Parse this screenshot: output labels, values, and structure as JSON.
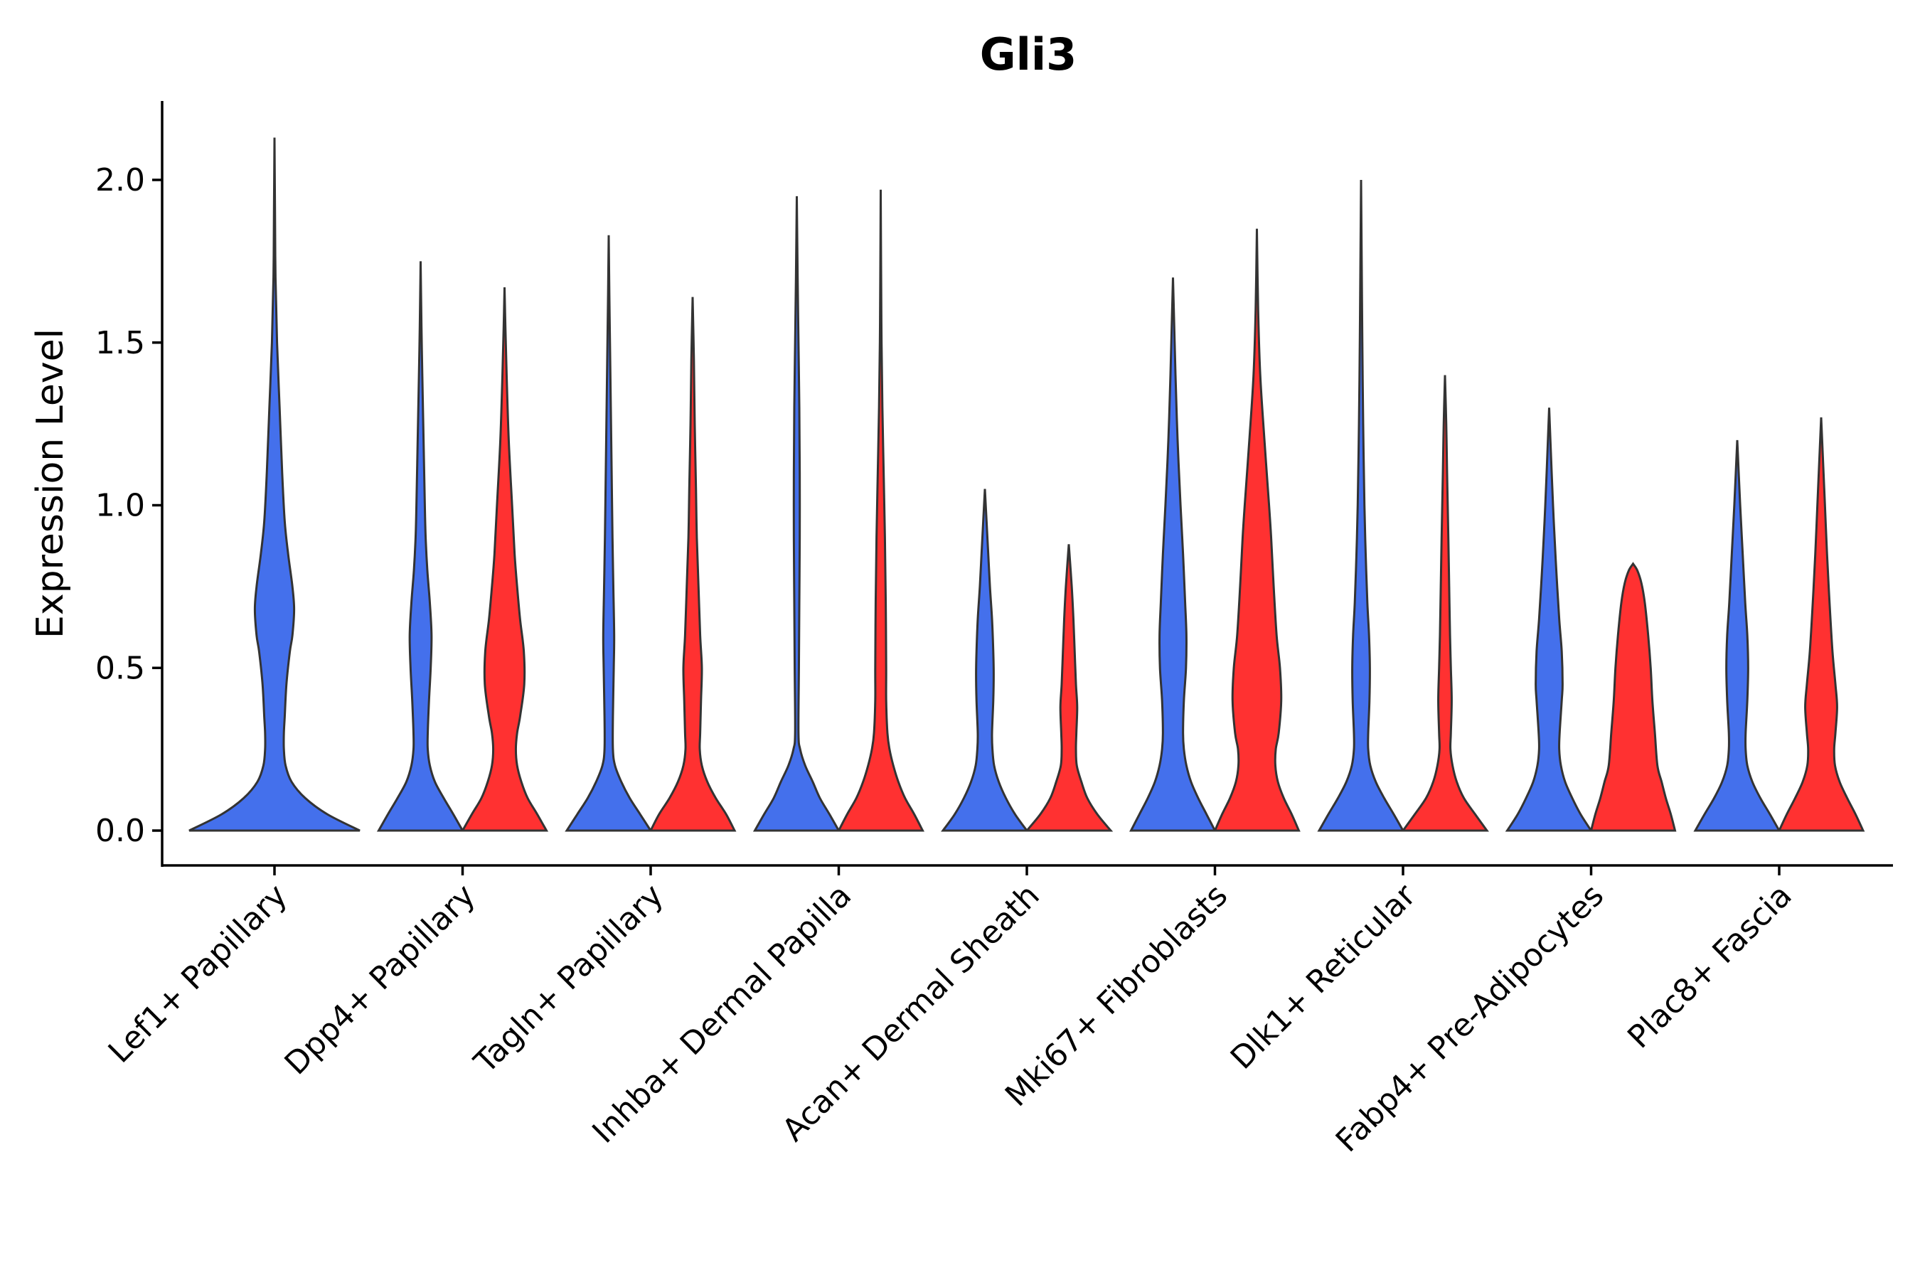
{
  "chart_data": {
    "type": "violin",
    "title": "Gli3",
    "xlabel": "",
    "ylabel": "Expression Level",
    "ylim": [
      -0.105,
      2.24
    ],
    "yticks": [
      0.0,
      0.5,
      1.0,
      1.5,
      2.0
    ],
    "ytick_labels": [
      "0.0",
      "0.5",
      "1.0",
      "1.5",
      "2.0"
    ],
    "colors": {
      "group_a": "#4470EC",
      "group_b": "#FF3131",
      "outline": "#333333"
    },
    "categories": [
      "Lef1+ Papillary",
      "Dpp4+ Papillary",
      "Tagln+ Papillary",
      "Inhba+ Dermal Papilla",
      "Acan+ Dermal Sheath",
      "Mki67+ Fibroblasts",
      "Dlk1+ Reticular",
      "Fabp4+ Pre-Adipocytes",
      "Plac8+ Fascia"
    ],
    "violins": [
      {
        "category": "Lef1+ Papillary",
        "group": "blue",
        "max": 2.13,
        "centered": true,
        "profile": [
          [
            0.0,
            1.0
          ],
          [
            0.05,
            0.62
          ],
          [
            0.1,
            0.36
          ],
          [
            0.15,
            0.2
          ],
          [
            0.2,
            0.13
          ],
          [
            0.25,
            0.11
          ],
          [
            0.3,
            0.11
          ],
          [
            0.35,
            0.12
          ],
          [
            0.45,
            0.14
          ],
          [
            0.55,
            0.18
          ],
          [
            0.6,
            0.21
          ],
          [
            0.68,
            0.23
          ],
          [
            0.75,
            0.21
          ],
          [
            0.85,
            0.16
          ],
          [
            0.95,
            0.12
          ],
          [
            1.1,
            0.09
          ],
          [
            1.3,
            0.06
          ],
          [
            1.5,
            0.03
          ],
          [
            1.7,
            0.012
          ],
          [
            1.9,
            0.006
          ],
          [
            2.13,
            0.0
          ]
        ]
      },
      {
        "category": "Dpp4+ Papillary",
        "group": "blue",
        "max": 1.75,
        "profile": [
          [
            0.0,
            1.0
          ],
          [
            0.05,
            0.78
          ],
          [
            0.1,
            0.55
          ],
          [
            0.15,
            0.34
          ],
          [
            0.2,
            0.22
          ],
          [
            0.25,
            0.17
          ],
          [
            0.3,
            0.17
          ],
          [
            0.4,
            0.2
          ],
          [
            0.5,
            0.24
          ],
          [
            0.6,
            0.26
          ],
          [
            0.7,
            0.22
          ],
          [
            0.8,
            0.16
          ],
          [
            0.9,
            0.12
          ],
          [
            1.0,
            0.1
          ],
          [
            1.2,
            0.07
          ],
          [
            1.4,
            0.04
          ],
          [
            1.55,
            0.02
          ],
          [
            1.75,
            0.0
          ]
        ]
      },
      {
        "category": "Dpp4+ Papillary",
        "group": "red",
        "max": 1.67,
        "profile": [
          [
            0.0,
            1.0
          ],
          [
            0.05,
            0.78
          ],
          [
            0.1,
            0.55
          ],
          [
            0.15,
            0.4
          ],
          [
            0.2,
            0.3
          ],
          [
            0.25,
            0.27
          ],
          [
            0.3,
            0.3
          ],
          [
            0.35,
            0.37
          ],
          [
            0.45,
            0.47
          ],
          [
            0.55,
            0.46
          ],
          [
            0.65,
            0.37
          ],
          [
            0.75,
            0.3
          ],
          [
            0.85,
            0.24
          ],
          [
            1.0,
            0.18
          ],
          [
            1.2,
            0.1
          ],
          [
            1.4,
            0.05
          ],
          [
            1.55,
            0.02
          ],
          [
            1.67,
            0.0
          ]
        ]
      },
      {
        "category": "Tagln+ Papillary",
        "group": "blue",
        "max": 1.83,
        "profile": [
          [
            0.0,
            1.0
          ],
          [
            0.05,
            0.75
          ],
          [
            0.1,
            0.5
          ],
          [
            0.15,
            0.3
          ],
          [
            0.2,
            0.15
          ],
          [
            0.25,
            0.1
          ],
          [
            0.35,
            0.1
          ],
          [
            0.5,
            0.12
          ],
          [
            0.6,
            0.13
          ],
          [
            0.75,
            0.11
          ],
          [
            0.9,
            0.09
          ],
          [
            1.1,
            0.07
          ],
          [
            1.3,
            0.05
          ],
          [
            1.5,
            0.03
          ],
          [
            1.65,
            0.015
          ],
          [
            1.83,
            0.0
          ]
        ]
      },
      {
        "category": "Tagln+ Papillary",
        "group": "red",
        "max": 1.64,
        "profile": [
          [
            0.0,
            1.0
          ],
          [
            0.05,
            0.8
          ],
          [
            0.1,
            0.55
          ],
          [
            0.15,
            0.35
          ],
          [
            0.2,
            0.22
          ],
          [
            0.25,
            0.17
          ],
          [
            0.3,
            0.18
          ],
          [
            0.4,
            0.2
          ],
          [
            0.5,
            0.22
          ],
          [
            0.6,
            0.18
          ],
          [
            0.75,
            0.14
          ],
          [
            0.9,
            0.1
          ],
          [
            1.05,
            0.08
          ],
          [
            1.25,
            0.05
          ],
          [
            1.45,
            0.03
          ],
          [
            1.64,
            0.0
          ]
        ]
      },
      {
        "category": "Inhba+ Dermal Papilla",
        "group": "blue",
        "max": 1.95,
        "profile": [
          [
            0.0,
            1.0
          ],
          [
            0.05,
            0.78
          ],
          [
            0.1,
            0.55
          ],
          [
            0.15,
            0.38
          ],
          [
            0.2,
            0.2
          ],
          [
            0.25,
            0.08
          ],
          [
            0.3,
            0.04
          ],
          [
            0.5,
            0.05
          ],
          [
            0.7,
            0.06
          ],
          [
            0.9,
            0.07
          ],
          [
            1.1,
            0.07
          ],
          [
            1.3,
            0.06
          ],
          [
            1.5,
            0.04
          ],
          [
            1.7,
            0.02
          ],
          [
            1.95,
            0.0
          ]
        ]
      },
      {
        "category": "Inhba+ Dermal Papilla",
        "group": "red",
        "max": 1.97,
        "profile": [
          [
            0.0,
            1.0
          ],
          [
            0.05,
            0.8
          ],
          [
            0.1,
            0.58
          ],
          [
            0.15,
            0.42
          ],
          [
            0.2,
            0.3
          ],
          [
            0.25,
            0.21
          ],
          [
            0.3,
            0.16
          ],
          [
            0.4,
            0.13
          ],
          [
            0.5,
            0.13
          ],
          [
            0.7,
            0.12
          ],
          [
            0.9,
            0.1
          ],
          [
            1.1,
            0.07
          ],
          [
            1.3,
            0.04
          ],
          [
            1.5,
            0.02
          ],
          [
            1.7,
            0.01
          ],
          [
            1.97,
            0.0
          ]
        ]
      },
      {
        "category": "Acan+ Dermal Sheath",
        "group": "blue",
        "max": 1.05,
        "profile": [
          [
            0.0,
            1.0
          ],
          [
            0.05,
            0.72
          ],
          [
            0.1,
            0.5
          ],
          [
            0.15,
            0.33
          ],
          [
            0.2,
            0.22
          ],
          [
            0.25,
            0.18
          ],
          [
            0.3,
            0.17
          ],
          [
            0.4,
            0.2
          ],
          [
            0.48,
            0.21
          ],
          [
            0.55,
            0.2
          ],
          [
            0.65,
            0.17
          ],
          [
            0.75,
            0.12
          ],
          [
            0.85,
            0.08
          ],
          [
            0.95,
            0.04
          ],
          [
            1.05,
            0.0
          ]
        ]
      },
      {
        "category": "Acan+ Dermal Sheath",
        "group": "red",
        "max": 0.88,
        "profile": [
          [
            0.0,
            1.0
          ],
          [
            0.05,
            0.68
          ],
          [
            0.1,
            0.44
          ],
          [
            0.15,
            0.3
          ],
          [
            0.2,
            0.19
          ],
          [
            0.25,
            0.17
          ],
          [
            0.3,
            0.18
          ],
          [
            0.38,
            0.2
          ],
          [
            0.45,
            0.17
          ],
          [
            0.55,
            0.14
          ],
          [
            0.65,
            0.11
          ],
          [
            0.75,
            0.07
          ],
          [
            0.88,
            0.0
          ]
        ]
      },
      {
        "category": "Mki67+ Fibroblasts",
        "group": "blue",
        "max": 1.7,
        "profile": [
          [
            0.0,
            1.0
          ],
          [
            0.05,
            0.8
          ],
          [
            0.1,
            0.6
          ],
          [
            0.15,
            0.43
          ],
          [
            0.2,
            0.32
          ],
          [
            0.25,
            0.26
          ],
          [
            0.3,
            0.24
          ],
          [
            0.4,
            0.26
          ],
          [
            0.5,
            0.31
          ],
          [
            0.6,
            0.32
          ],
          [
            0.7,
            0.29
          ],
          [
            0.85,
            0.24
          ],
          [
            1.0,
            0.18
          ],
          [
            1.2,
            0.11
          ],
          [
            1.4,
            0.06
          ],
          [
            1.55,
            0.03
          ],
          [
            1.7,
            0.0
          ]
        ]
      },
      {
        "category": "Mki67+ Fibroblasts",
        "group": "red",
        "max": 1.85,
        "profile": [
          [
            0.0,
            1.0
          ],
          [
            0.05,
            0.83
          ],
          [
            0.1,
            0.64
          ],
          [
            0.15,
            0.5
          ],
          [
            0.2,
            0.44
          ],
          [
            0.25,
            0.45
          ],
          [
            0.3,
            0.52
          ],
          [
            0.4,
            0.58
          ],
          [
            0.5,
            0.55
          ],
          [
            0.6,
            0.47
          ],
          [
            0.75,
            0.4
          ],
          [
            0.9,
            0.34
          ],
          [
            1.0,
            0.29
          ],
          [
            1.2,
            0.18
          ],
          [
            1.4,
            0.08
          ],
          [
            1.6,
            0.03
          ],
          [
            1.85,
            0.0
          ]
        ]
      },
      {
        "category": "Dlk1+ Reticular",
        "group": "blue",
        "max": 2.0,
        "profile": [
          [
            0.0,
            1.0
          ],
          [
            0.05,
            0.78
          ],
          [
            0.1,
            0.55
          ],
          [
            0.15,
            0.35
          ],
          [
            0.2,
            0.22
          ],
          [
            0.25,
            0.17
          ],
          [
            0.3,
            0.17
          ],
          [
            0.4,
            0.2
          ],
          [
            0.5,
            0.21
          ],
          [
            0.6,
            0.19
          ],
          [
            0.7,
            0.15
          ],
          [
            0.85,
            0.11
          ],
          [
            1.0,
            0.08
          ],
          [
            1.25,
            0.05
          ],
          [
            1.5,
            0.03
          ],
          [
            1.75,
            0.015
          ],
          [
            2.0,
            0.0
          ]
        ]
      },
      {
        "category": "Dlk1+ Reticular",
        "group": "red",
        "max": 1.4,
        "profile": [
          [
            0.0,
            1.0
          ],
          [
            0.05,
            0.72
          ],
          [
            0.1,
            0.45
          ],
          [
            0.15,
            0.28
          ],
          [
            0.2,
            0.18
          ],
          [
            0.25,
            0.13
          ],
          [
            0.3,
            0.14
          ],
          [
            0.4,
            0.16
          ],
          [
            0.5,
            0.14
          ],
          [
            0.6,
            0.12
          ],
          [
            0.75,
            0.1
          ],
          [
            0.9,
            0.08
          ],
          [
            1.1,
            0.05
          ],
          [
            1.25,
            0.03
          ],
          [
            1.4,
            0.0
          ]
        ]
      },
      {
        "category": "Fabp4+ Pre-Adipocytes",
        "group": "blue",
        "max": 1.3,
        "profile": [
          [
            0.0,
            1.0
          ],
          [
            0.05,
            0.75
          ],
          [
            0.1,
            0.55
          ],
          [
            0.15,
            0.38
          ],
          [
            0.2,
            0.28
          ],
          [
            0.25,
            0.24
          ],
          [
            0.3,
            0.25
          ],
          [
            0.4,
            0.3
          ],
          [
            0.45,
            0.32
          ],
          [
            0.55,
            0.3
          ],
          [
            0.65,
            0.24
          ],
          [
            0.8,
            0.17
          ],
          [
            0.95,
            0.11
          ],
          [
            1.1,
            0.06
          ],
          [
            1.3,
            0.0
          ]
        ]
      },
      {
        "category": "Fabp4+ Pre-Adipocytes",
        "group": "red",
        "max": 0.82,
        "profile": [
          [
            0.0,
            1.0
          ],
          [
            0.05,
            0.9
          ],
          [
            0.1,
            0.78
          ],
          [
            0.15,
            0.68
          ],
          [
            0.2,
            0.58
          ],
          [
            0.3,
            0.52
          ],
          [
            0.4,
            0.46
          ],
          [
            0.5,
            0.42
          ],
          [
            0.6,
            0.36
          ],
          [
            0.7,
            0.28
          ],
          [
            0.76,
            0.2
          ],
          [
            0.8,
            0.1
          ],
          [
            0.82,
            0.0
          ]
        ]
      },
      {
        "category": "Plac8+ Fascia",
        "group": "blue",
        "max": 1.2,
        "profile": [
          [
            0.0,
            1.0
          ],
          [
            0.05,
            0.78
          ],
          [
            0.1,
            0.55
          ],
          [
            0.15,
            0.36
          ],
          [
            0.2,
            0.24
          ],
          [
            0.25,
            0.2
          ],
          [
            0.3,
            0.2
          ],
          [
            0.4,
            0.24
          ],
          [
            0.5,
            0.26
          ],
          [
            0.6,
            0.24
          ],
          [
            0.7,
            0.19
          ],
          [
            0.85,
            0.13
          ],
          [
            1.0,
            0.07
          ],
          [
            1.2,
            0.0
          ]
        ]
      },
      {
        "category": "Plac8+ Fascia",
        "group": "red",
        "max": 1.27,
        "profile": [
          [
            0.0,
            1.0
          ],
          [
            0.05,
            0.82
          ],
          [
            0.1,
            0.62
          ],
          [
            0.15,
            0.44
          ],
          [
            0.2,
            0.33
          ],
          [
            0.25,
            0.31
          ],
          [
            0.3,
            0.34
          ],
          [
            0.38,
            0.38
          ],
          [
            0.45,
            0.34
          ],
          [
            0.55,
            0.27
          ],
          [
            0.7,
            0.2
          ],
          [
            0.85,
            0.14
          ],
          [
            1.0,
            0.09
          ],
          [
            1.15,
            0.04
          ],
          [
            1.27,
            0.0
          ]
        ]
      }
    ]
  }
}
